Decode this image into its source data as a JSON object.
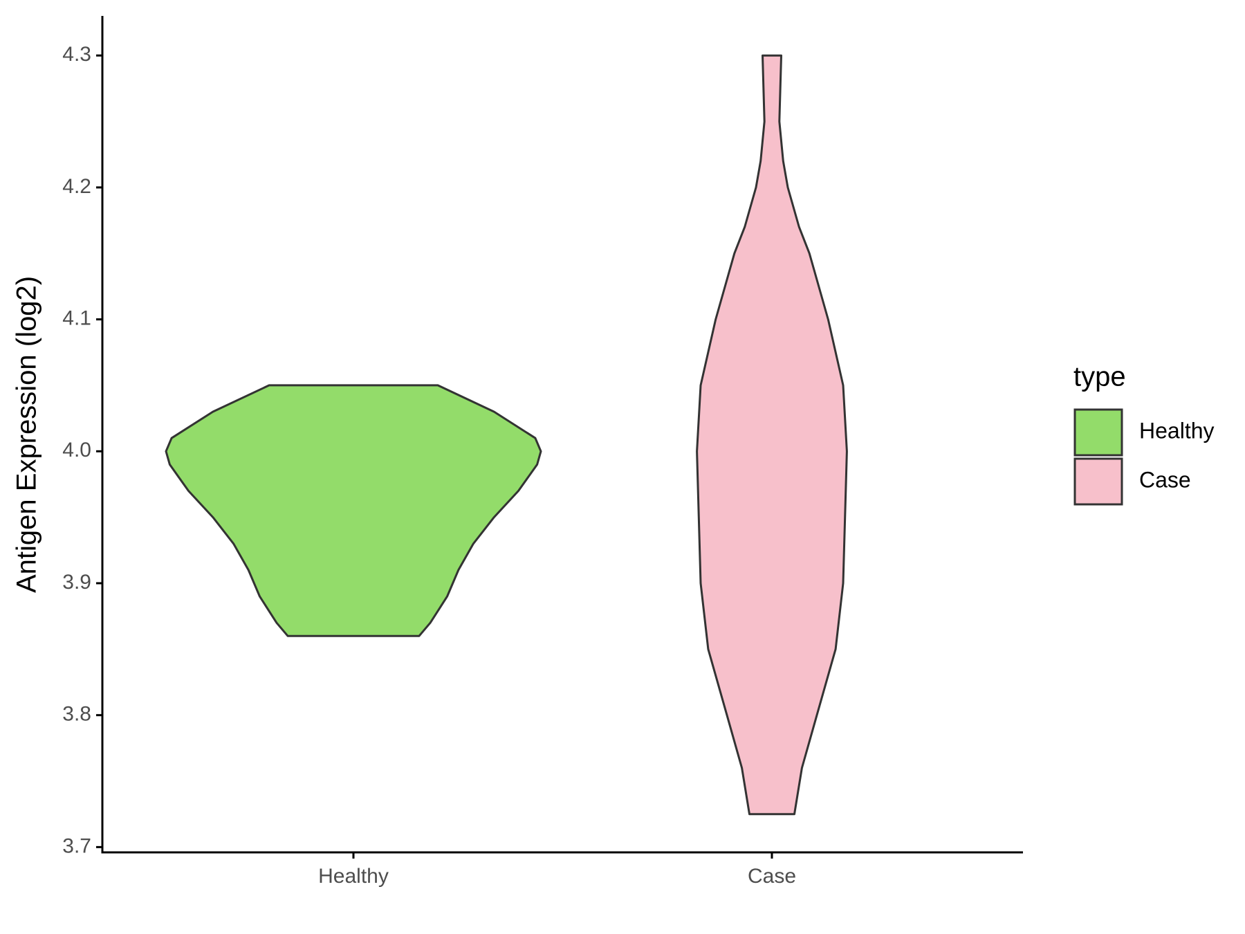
{
  "chart_data": {
    "type": "violin",
    "y_label": "Antigen Expression (log2)",
    "categories": [
      "Healthy",
      "Case"
    ],
    "legend_title": "type",
    "legend_position": "right",
    "ylim": [
      3.696,
      4.33
    ],
    "yticks": [
      3.7,
      3.8,
      3.9,
      {
        "value": 4,
        "label": "4.0"
      },
      4.1,
      4.2,
      4.3
    ],
    "series": [
      {
        "name": "Healthy",
        "color": "#93dc6a",
        "y": [
          4.05,
          4.03,
          4.01,
          4.0,
          3.99,
          3.97,
          3.95,
          3.93,
          3.91,
          3.89,
          3.87,
          3.86
        ],
        "density": [
          0.45,
          0.75,
          0.97,
          1.0,
          0.98,
          0.88,
          0.75,
          0.64,
          0.56,
          0.5,
          0.41,
          0.35
        ]
      },
      {
        "name": "Case",
        "color": "#f7c0cb",
        "y": [
          4.3,
          4.25,
          4.22,
          4.2,
          4.17,
          4.15,
          4.1,
          4.05,
          4.0,
          3.95,
          3.9,
          3.85,
          3.8,
          3.76,
          3.725
        ],
        "density": [
          0.05,
          0.04,
          0.06,
          0.085,
          0.145,
          0.2,
          0.3,
          0.38,
          0.4,
          0.39,
          0.38,
          0.34,
          0.24,
          0.16,
          0.12
        ]
      }
    ]
  }
}
